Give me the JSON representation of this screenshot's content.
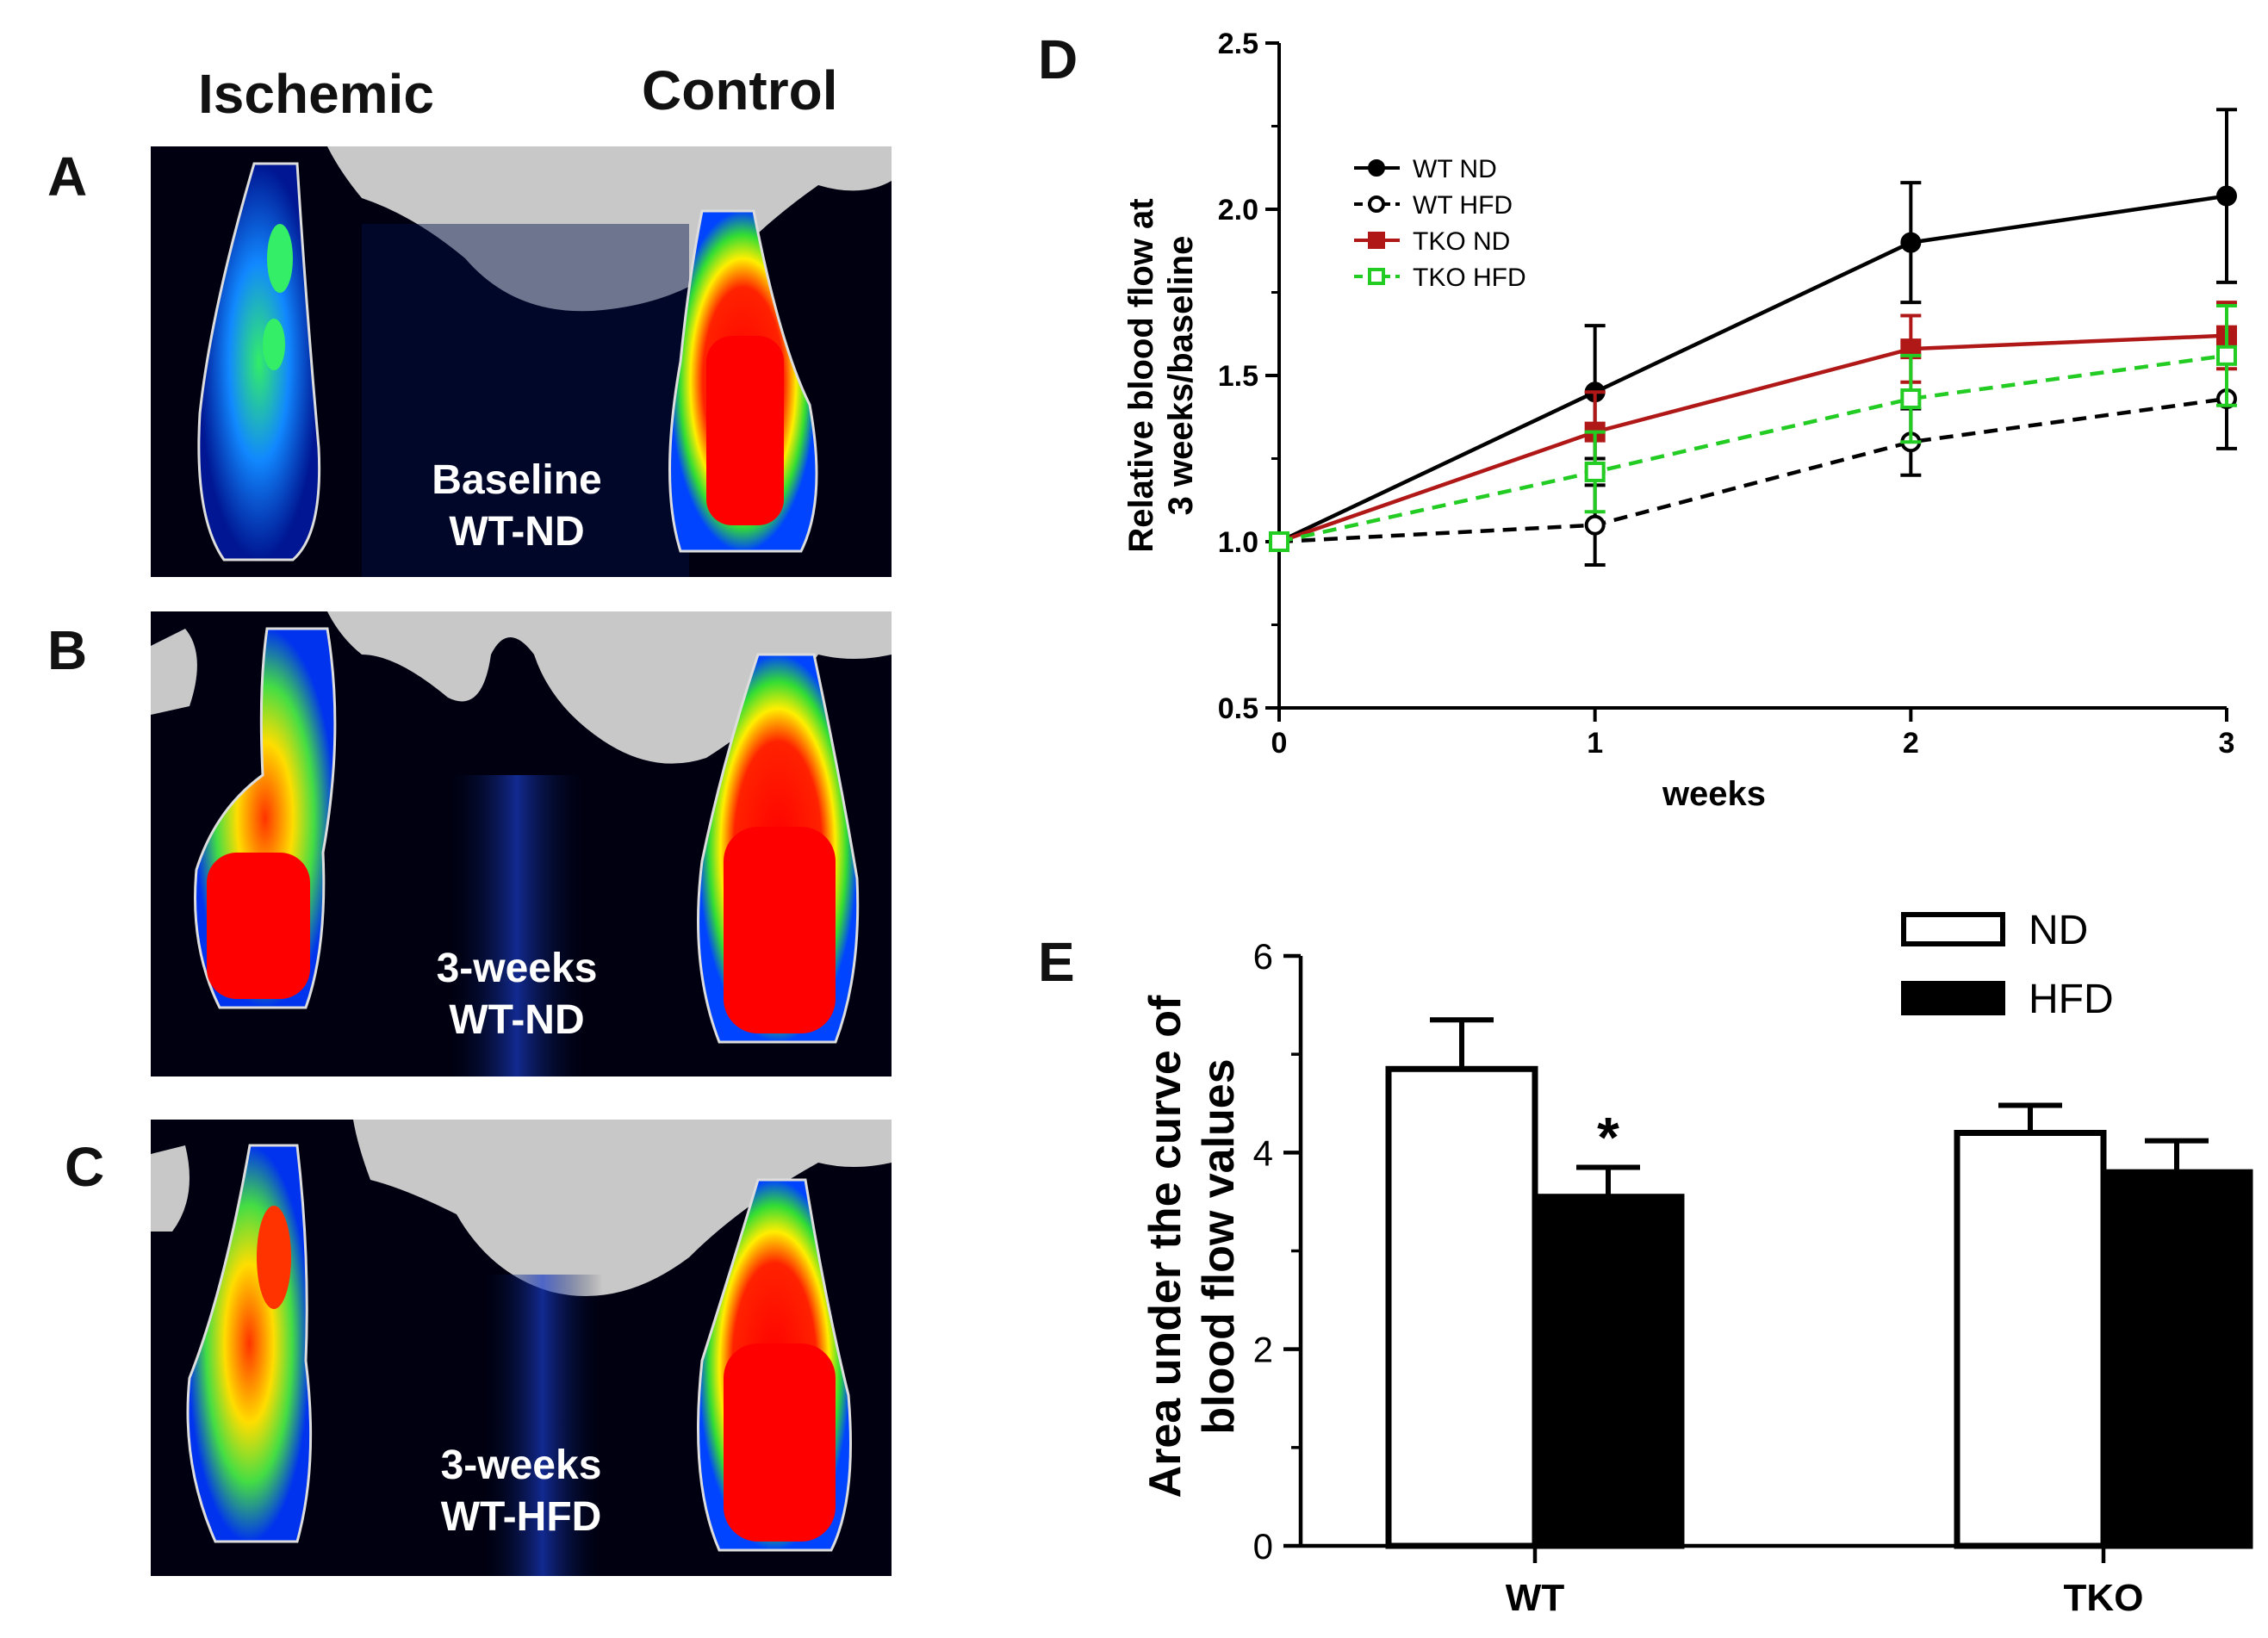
{
  "column_headers": {
    "left": "Ischemic",
    "right": "Control"
  },
  "panel_labels": {
    "A": "A",
    "B": "B",
    "C": "C",
    "D": "D",
    "E": "E"
  },
  "images": [
    {
      "id": "A",
      "line1": "Baseline",
      "line2": "WT-ND"
    },
    {
      "id": "B",
      "line1": "3-weeks",
      "line2": "WT-ND"
    },
    {
      "id": "C",
      "line1": "3-weeks",
      "line2": "WT-HFD"
    }
  ],
  "chart_data": [
    {
      "type": "line",
      "panel": "D",
      "title": "",
      "xlabel": "weeks",
      "ylabel_line1": "Relative blood flow at",
      "ylabel_line2": "3 weeks/baseline",
      "x": [
        0,
        1,
        2,
        3
      ],
      "xticks": [
        "0",
        "1",
        "2",
        "3"
      ],
      "yticks": [
        "0.5",
        "1.0",
        "1.5",
        "2.0",
        "2.5"
      ],
      "xlim": [
        0,
        3
      ],
      "ylim": [
        0.5,
        2.5
      ],
      "legend_position": "top-left",
      "series": [
        {
          "name": "WT ND",
          "values": [
            1.0,
            1.45,
            1.9,
            2.04
          ],
          "err": [
            0,
            0.2,
            0.18,
            0.26
          ],
          "color": "#000000",
          "marker": "filled-circle",
          "line": "solid"
        },
        {
          "name": "WT HFD",
          "values": [
            1.0,
            1.05,
            1.3,
            1.43
          ],
          "err": [
            0,
            0.12,
            0.1,
            0.15
          ],
          "color": "#000000",
          "marker": "open-circle",
          "line": "dashed"
        },
        {
          "name": "TKO ND",
          "values": [
            1.0,
            1.33,
            1.58,
            1.62
          ],
          "err": [
            0,
            0.12,
            0.1,
            0.1
          ],
          "color": "#b01818",
          "marker": "filled-square",
          "line": "solid"
        },
        {
          "name": "TKO HFD",
          "values": [
            1.0,
            1.21,
            1.43,
            1.56
          ],
          "err": [
            0,
            0.12,
            0.13,
            0.15
          ],
          "color": "#22cc22",
          "marker": "open-square",
          "line": "dashed"
        }
      ]
    },
    {
      "type": "bar",
      "panel": "E",
      "title": "",
      "xlabel": "",
      "ylabel_line1": "Area under the curve of",
      "ylabel_line2": "blood flow values",
      "categories": [
        "WT",
        "TKO"
      ],
      "yticks": [
        "0",
        "2",
        "4",
        "6"
      ],
      "ylim": [
        0,
        6
      ],
      "legend_position": "top-right",
      "series": [
        {
          "name": "ND",
          "values": [
            4.85,
            4.2
          ],
          "err": [
            0.5,
            0.28
          ],
          "fill": "#ffffff"
        },
        {
          "name": "HFD",
          "values": [
            3.55,
            3.8
          ],
          "err": [
            0.3,
            0.32
          ],
          "fill": "#000000"
        }
      ],
      "annotations": [
        {
          "text": "*",
          "category": "WT",
          "series": "HFD"
        }
      ]
    }
  ]
}
